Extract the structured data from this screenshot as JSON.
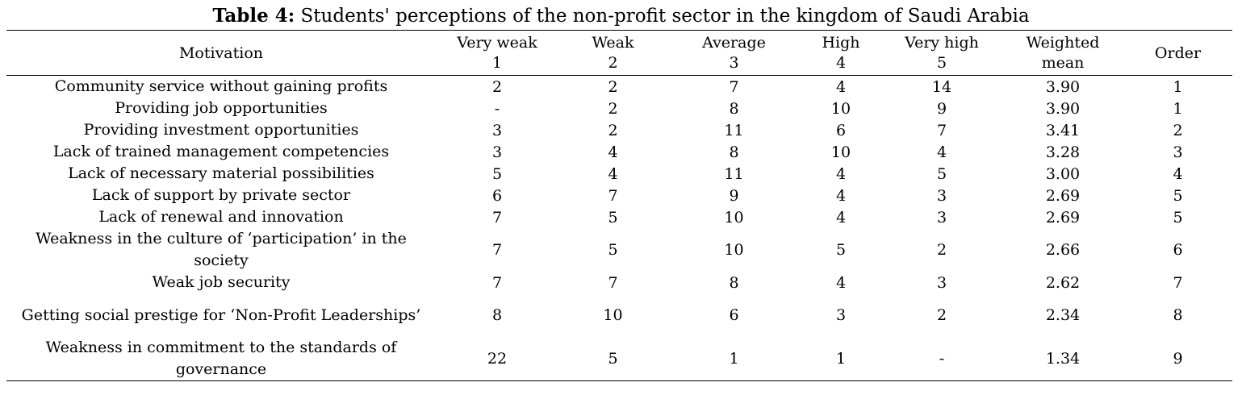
{
  "caption": {
    "label": "Table 4:",
    "text": " Students' perceptions of the non-profit sector in the kingdom of Saudi Arabia"
  },
  "header": {
    "motivation": "Motivation",
    "cols": [
      {
        "l1": "Very weak",
        "l2": "1"
      },
      {
        "l1": "Weak",
        "l2": "2"
      },
      {
        "l1": "Average",
        "l2": "3"
      },
      {
        "l1": "High",
        "l2": "4"
      },
      {
        "l1": "Very high",
        "l2": "5"
      },
      {
        "l1": "Weighted",
        "l2": "mean"
      }
    ],
    "order": "Order"
  },
  "rows": [
    {
      "motivation": "Community service without gaining profits",
      "v": [
        "2",
        "2",
        "7",
        "4",
        "14",
        "3.90",
        "1"
      ]
    },
    {
      "motivation": "Providing job opportunities",
      "v": [
        "-",
        "2",
        "8",
        "10",
        "9",
        "3.90",
        "1"
      ]
    },
    {
      "motivation": "Providing investment opportunities",
      "v": [
        "3",
        "2",
        "11",
        "6",
        "7",
        "3.41",
        "2"
      ]
    },
    {
      "motivation": "Lack of trained management competencies",
      "v": [
        "3",
        "4",
        "8",
        "10",
        "4",
        "3.28",
        "3"
      ]
    },
    {
      "motivation": "Lack of necessary material possibilities",
      "v": [
        "5",
        "4",
        "11",
        "4",
        "5",
        "3.00",
        "4"
      ]
    },
    {
      "motivation": "Lack of support by private sector",
      "v": [
        "6",
        "7",
        "9",
        "4",
        "3",
        "2.69",
        "5"
      ]
    },
    {
      "motivation": "Lack of renewal and innovation",
      "v": [
        "7",
        "5",
        "10",
        "4",
        "3",
        "2.69",
        "5"
      ]
    },
    {
      "motivation": "Weakness in the culture of ‘participation’ in the society",
      "v": [
        "7",
        "5",
        "10",
        "5",
        "2",
        "2.66",
        "6"
      ]
    },
    {
      "motivation": "Weak job security",
      "v": [
        "7",
        "7",
        "8",
        "4",
        "3",
        "2.62",
        "7"
      ]
    },
    {
      "motivation": "Getting social prestige for ‘Non-Profit Leaderships’",
      "v": [
        "8",
        "10",
        "6",
        "3",
        "2",
        "2.34",
        "8"
      ]
    },
    {
      "motivation": "Weakness in commitment to the standards of governance",
      "v": [
        "22",
        "5",
        "1",
        "1",
        "-",
        "1.34",
        "9"
      ]
    }
  ]
}
